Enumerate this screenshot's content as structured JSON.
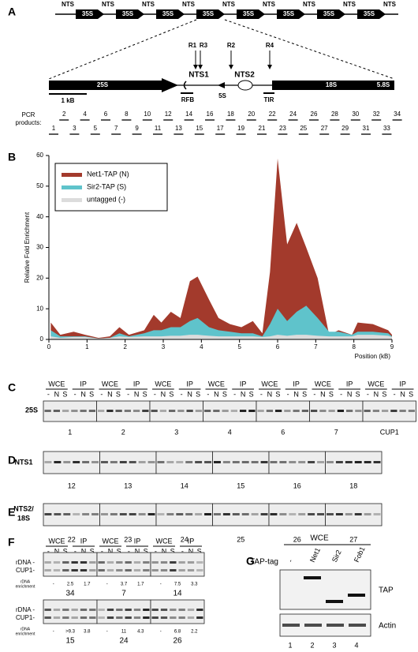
{
  "panels": {
    "labels": [
      "A",
      "B",
      "C",
      "D",
      "E",
      "F",
      "G"
    ]
  },
  "panel_a": {
    "repeat": [
      "NTS",
      "35S"
    ],
    "features": {
      "r25s": "25S",
      "nts1": "NTS1",
      "nts2": "NTS2",
      "r5s": "5S",
      "r18s": "18S",
      "r58s": "5.8S",
      "rfb": "RFB",
      "tir": "TIR",
      "scale": "1 kB"
    },
    "primers": [
      "R1",
      "R3",
      "R2",
      "R4"
    ],
    "pcr_label": [
      "PCR",
      "products:"
    ],
    "pcr_products": [
      1,
      2,
      3,
      4,
      5,
      6,
      7,
      8,
      9,
      10,
      11,
      12,
      13,
      14,
      15,
      16,
      17,
      18,
      19,
      20,
      21,
      22,
      23,
      24,
      25,
      26,
      27,
      28,
      29,
      30,
      31,
      32,
      33,
      34
    ]
  },
  "chart_data": {
    "type": "area",
    "y_label": "Relative Fold Enrichment",
    "x_label": "Position (kB)",
    "x": [
      0.05,
      0.3,
      0.65,
      0.95,
      1.3,
      1.6,
      1.85,
      2.1,
      2.5,
      2.75,
      2.95,
      3.2,
      3.45,
      3.7,
      3.9,
      4.2,
      4.45,
      4.75,
      5.05,
      5.35,
      5.6,
      5.8,
      6.0,
      6.25,
      6.5,
      6.75,
      7.05,
      7.35,
      7.6,
      7.95,
      8.1,
      8.5,
      8.9,
      9.0
    ],
    "series": [
      {
        "name": "Net1-TAP (N)",
        "color": "#a33a2c",
        "values": [
          5.5,
          1.5,
          2.5,
          1.5,
          0.5,
          1,
          4,
          1.5,
          3,
          8,
          5.5,
          9,
          7,
          19,
          20.5,
          13,
          7,
          5,
          4,
          6,
          2,
          22,
          59,
          31,
          38,
          30,
          20,
          1.5,
          3,
          1.5,
          5.5,
          5,
          3,
          1.5
        ]
      },
      {
        "name": "Sir2-TAP (S)",
        "color": "#5fc3cb",
        "values": [
          3,
          1,
          1,
          1,
          0.3,
          0.5,
          2,
          1,
          2,
          3,
          3,
          4,
          4,
          6,
          7,
          4,
          3,
          2.5,
          2,
          2,
          1,
          5,
          10,
          6,
          9,
          11,
          7,
          2.5,
          2.5,
          1.5,
          2.5,
          2.5,
          2,
          1
        ]
      },
      {
        "name": "untagged (-)",
        "color": "#dcdcdc",
        "values": [
          1,
          0.5,
          0.8,
          0.8,
          0.3,
          0.5,
          1,
          0.8,
          1,
          1,
          1,
          1.2,
          1.2,
          1.5,
          1.5,
          1.2,
          1,
          1,
          1,
          1,
          0.8,
          1,
          1.5,
          1.2,
          1.5,
          1.5,
          1.2,
          1,
          1,
          1,
          1.5,
          1.5,
          1.2,
          0.8
        ]
      }
    ],
    "xlim": [
      0,
      9
    ],
    "ylim": [
      0,
      60
    ],
    "xticks": [
      0,
      1,
      2,
      3,
      4,
      5,
      6,
      7,
      8,
      9
    ],
    "yticks": [
      0,
      10,
      20,
      30,
      40,
      50,
      60
    ],
    "legend": "upper left"
  },
  "panel_c": {
    "groups": [
      "WCE",
      "IP"
    ],
    "strains": [
      "-",
      "N",
      "S"
    ],
    "row_label": "25S",
    "regions": [
      "1",
      "2",
      "3",
      "4",
      "6",
      "7",
      "CUP1"
    ]
  },
  "panel_d": {
    "row_label": "NTS1",
    "regions": [
      "12",
      "13",
      "14",
      "15",
      "16",
      "18"
    ]
  },
  "panel_e": {
    "row_label": [
      "NTS2/",
      "18S"
    ],
    "regions": [
      "22",
      "23",
      "24",
      "25",
      "26",
      "27"
    ]
  },
  "panel_f": {
    "bands": [
      "rDNA -",
      "CUP1-"
    ],
    "enrichment_label": [
      "rDNA",
      "enrichment"
    ],
    "rows": [
      {
        "regions": [
          "34",
          "7",
          "14"
        ],
        "enrichment": [
          [
            "-",
            "2.5",
            "1.7"
          ],
          [
            "-",
            "3.7",
            "1.7"
          ],
          [
            "-",
            "7.5",
            "3.3"
          ]
        ]
      },
      {
        "regions": [
          "15",
          "24",
          "26"
        ],
        "enrichment": [
          [
            "-",
            ">9.3",
            "3.8"
          ],
          [
            "-",
            "11",
            "4.3"
          ],
          [
            "-",
            "6.8",
            "2.2"
          ]
        ]
      }
    ]
  },
  "panel_g": {
    "header": "WCE",
    "tag_label": "TAP-tag",
    "lanes": [
      "-",
      "Net1",
      "Sir2",
      "Fob1"
    ],
    "bands": [
      "TAP",
      "Actin"
    ],
    "lane_numbers": [
      "1",
      "2",
      "3",
      "4"
    ]
  }
}
